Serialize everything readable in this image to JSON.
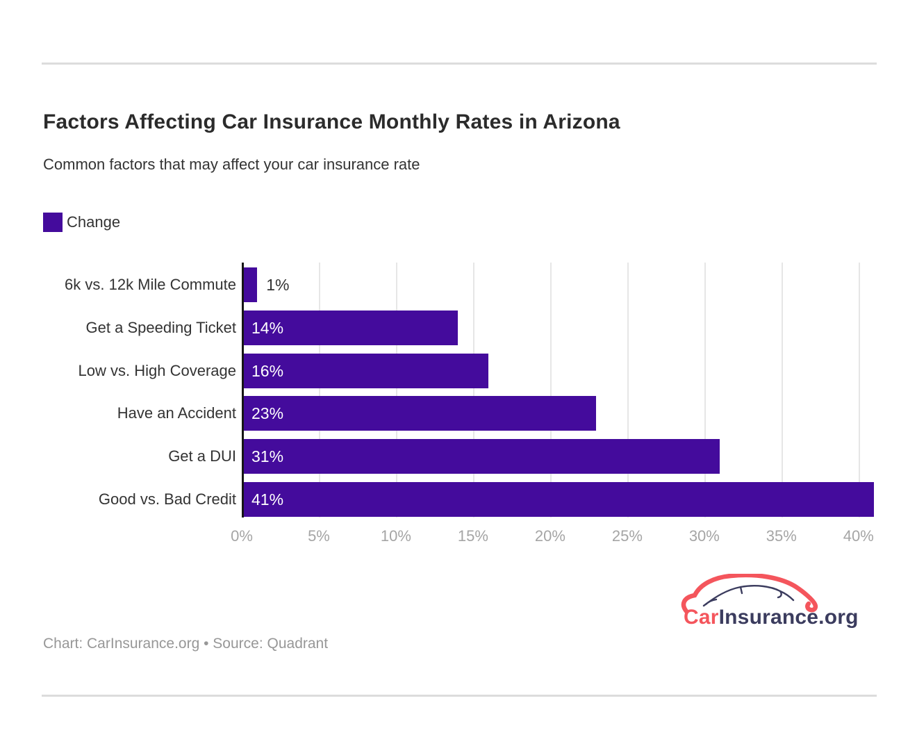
{
  "header": {
    "title": "Factors Affecting Car Insurance Monthly Rates in Arizona",
    "subtitle": "Common factors that may affect your car insurance rate"
  },
  "legend": {
    "label": "Change",
    "swatch_color": "#440b9c"
  },
  "chart_data": {
    "type": "bar",
    "orientation": "horizontal",
    "title": "Factors Affecting Car Insurance Monthly Rates in Arizona",
    "categories": [
      "6k vs. 12k Mile Commute",
      "Get a Speeding Ticket",
      "Low vs. High Coverage",
      "Have an Accident",
      "Get a DUI",
      "Good vs. Bad Credit"
    ],
    "series": [
      {
        "name": "Change",
        "values": [
          1,
          14,
          16,
          23,
          31,
          41
        ]
      }
    ],
    "value_labels": [
      "1%",
      "14%",
      "16%",
      "23%",
      "31%",
      "41%"
    ],
    "x_tick_labels": [
      "0%",
      "5%",
      "10%",
      "15%",
      "20%",
      "25%",
      "30%",
      "35%",
      "40%"
    ],
    "x_tick_values": [
      0,
      5,
      10,
      15,
      20,
      25,
      30,
      35,
      40
    ],
    "xlim": [
      0,
      41
    ],
    "grid": true,
    "legend_position": "top-left",
    "bar_color": "#440b9c",
    "zero_axis_color": "#161616",
    "gridline_color": "#e6e6e6"
  },
  "footer": {
    "credit": "Chart: CarInsurance.org • Source: Quadrant"
  },
  "logo": {
    "icon": "car-outline-icon",
    "car_text": "Car",
    "insurance_text": "Insurance",
    "org_text": ".org",
    "car_color": "#f4555c",
    "text_color": "#3b3c5e"
  }
}
